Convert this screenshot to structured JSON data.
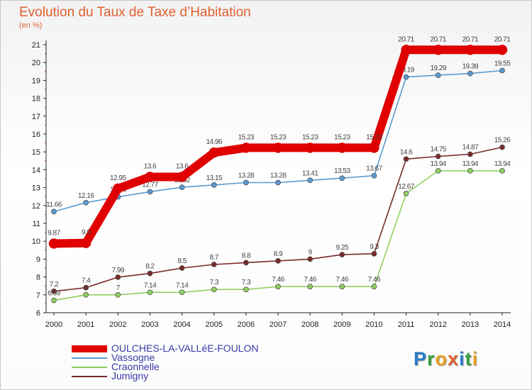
{
  "header": {
    "title": "Evolution du Taux de Taxe d’Habitation",
    "unit": "(en %)"
  },
  "logo": {
    "text": "Proxiti",
    "letter_colors": [
      "#2a7ac8",
      "#3aa040",
      "#e8a020",
      "#e06030",
      "#2a7ac8",
      "#3aa040",
      "#e8a020"
    ]
  },
  "chart_data": {
    "type": "line",
    "title": "Evolution du Taux de Taxe d’Habitation",
    "ylabel": "(en %)",
    "xlabel": "",
    "x": [
      "2000",
      "2001",
      "2002",
      "2003",
      "2004",
      "2005",
      "2006",
      "2007",
      "2008",
      "2009",
      "2010",
      "2011",
      "2012",
      "2013",
      "2014"
    ],
    "ylim": [
      6,
      21
    ],
    "yticks": [
      6,
      7,
      8,
      9,
      10,
      11,
      12,
      13,
      14,
      15,
      16,
      17,
      18,
      19,
      20,
      21
    ],
    "grid": "none",
    "legend_position": "bottom-left",
    "series": [
      {
        "name": "OULCHES-LA-VALLéE-FOULON",
        "color": "#e00000",
        "values": [
          9.87,
          9.9,
          12.95,
          13.6,
          13.6,
          14.96,
          15.23,
          15.23,
          15.23,
          15.23,
          15.23,
          20.71,
          20.71,
          20.71,
          20.71
        ],
        "labels": [
          "9.87",
          "9.9",
          "12.95",
          "13.6",
          "13.6",
          "14.96",
          "15.23",
          "15.23",
          "15.23",
          "15.23",
          "15.23",
          "20.71",
          "20.71",
          "20.71",
          "20.71"
        ]
      },
      {
        "name": "Vassogne",
        "color": "#5a9ad0",
        "values": [
          11.66,
          12.16,
          12.48,
          12.77,
          13.02,
          13.15,
          13.28,
          13.28,
          13.41,
          13.53,
          13.67,
          19.19,
          19.29,
          19.39,
          19.55
        ],
        "labels": [
          "11.66",
          "12.16",
          "12.48",
          "12.77",
          "13.02",
          "13.15",
          "13.28",
          "13.28",
          "13.41",
          "13.53",
          "13.67",
          "19.19",
          "19.29",
          "19.39",
          "19.55"
        ]
      },
      {
        "name": "Craonnelle",
        "color": "#8fd060",
        "values": [
          6.69,
          7,
          7,
          7.14,
          7.14,
          7.3,
          7.3,
          7.46,
          7.46,
          7.46,
          7.46,
          12.67,
          13.94,
          13.94,
          13.94
        ],
        "labels": [
          "6.69",
          "7",
          "7",
          "7.14",
          "7.14",
          "7.3",
          "7.3",
          "7.46",
          "7.46",
          "7.46",
          "7.46",
          "12.67",
          "13.94",
          "13.94",
          "13.94"
        ]
      },
      {
        "name": "Jumigny",
        "color": "#7a2a2a",
        "values": [
          7.2,
          7.4,
          7.99,
          8.2,
          8.5,
          8.7,
          8.8,
          8.9,
          9,
          9.25,
          9.3,
          14.6,
          14.75,
          14.87,
          15.26
        ],
        "labels": [
          "7.2",
          "7.4",
          "7.99",
          "8.2",
          "8.5",
          "8.7",
          "8.8",
          "8.9",
          "9",
          "9.25",
          "9.3",
          "14.6",
          "14.75",
          "14.87",
          "15.26"
        ]
      }
    ]
  }
}
